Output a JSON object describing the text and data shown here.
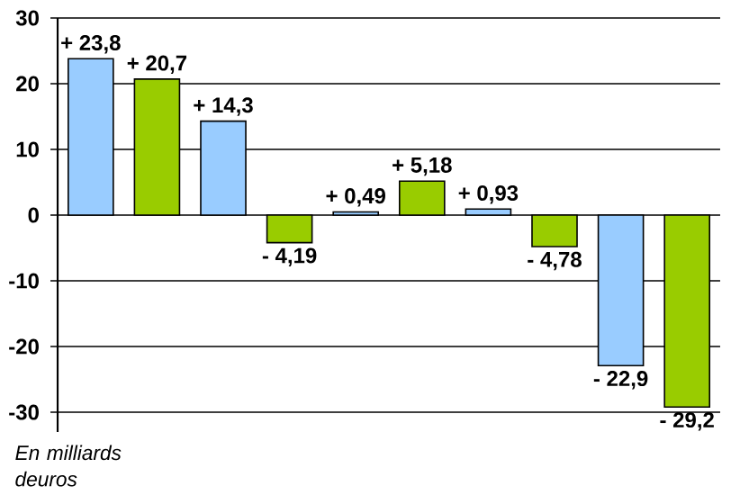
{
  "chart_data": {
    "type": "bar",
    "categories": [
      null,
      null,
      null,
      null,
      null,
      null,
      null,
      null,
      null,
      null
    ],
    "values": [
      23.8,
      20.7,
      14.3,
      -4.19,
      0.49,
      5.18,
      0.93,
      -4.78,
      -22.9,
      -29.2
    ],
    "colors": [
      "#99ccff",
      "#99cc00",
      "#99ccff",
      "#99cc00",
      "#99ccff",
      "#99cc00",
      "#99ccff",
      "#99cc00",
      "#99ccff",
      "#99cc00"
    ],
    "value_labels": [
      "+ 23,8",
      "+ 20,7",
      "+ 14,3",
      "- 4,19",
      "+ 0,49",
      "+ 5,18",
      "+ 0,93",
      "- 4,78",
      "- 22,9",
      "- 29,2"
    ],
    "ylim": [
      -33,
      30
    ],
    "yticks": [
      -30,
      -20,
      -10,
      0,
      10,
      20,
      30
    ],
    "grid": "y",
    "annotations": [
      "En milliards deuros"
    ]
  }
}
